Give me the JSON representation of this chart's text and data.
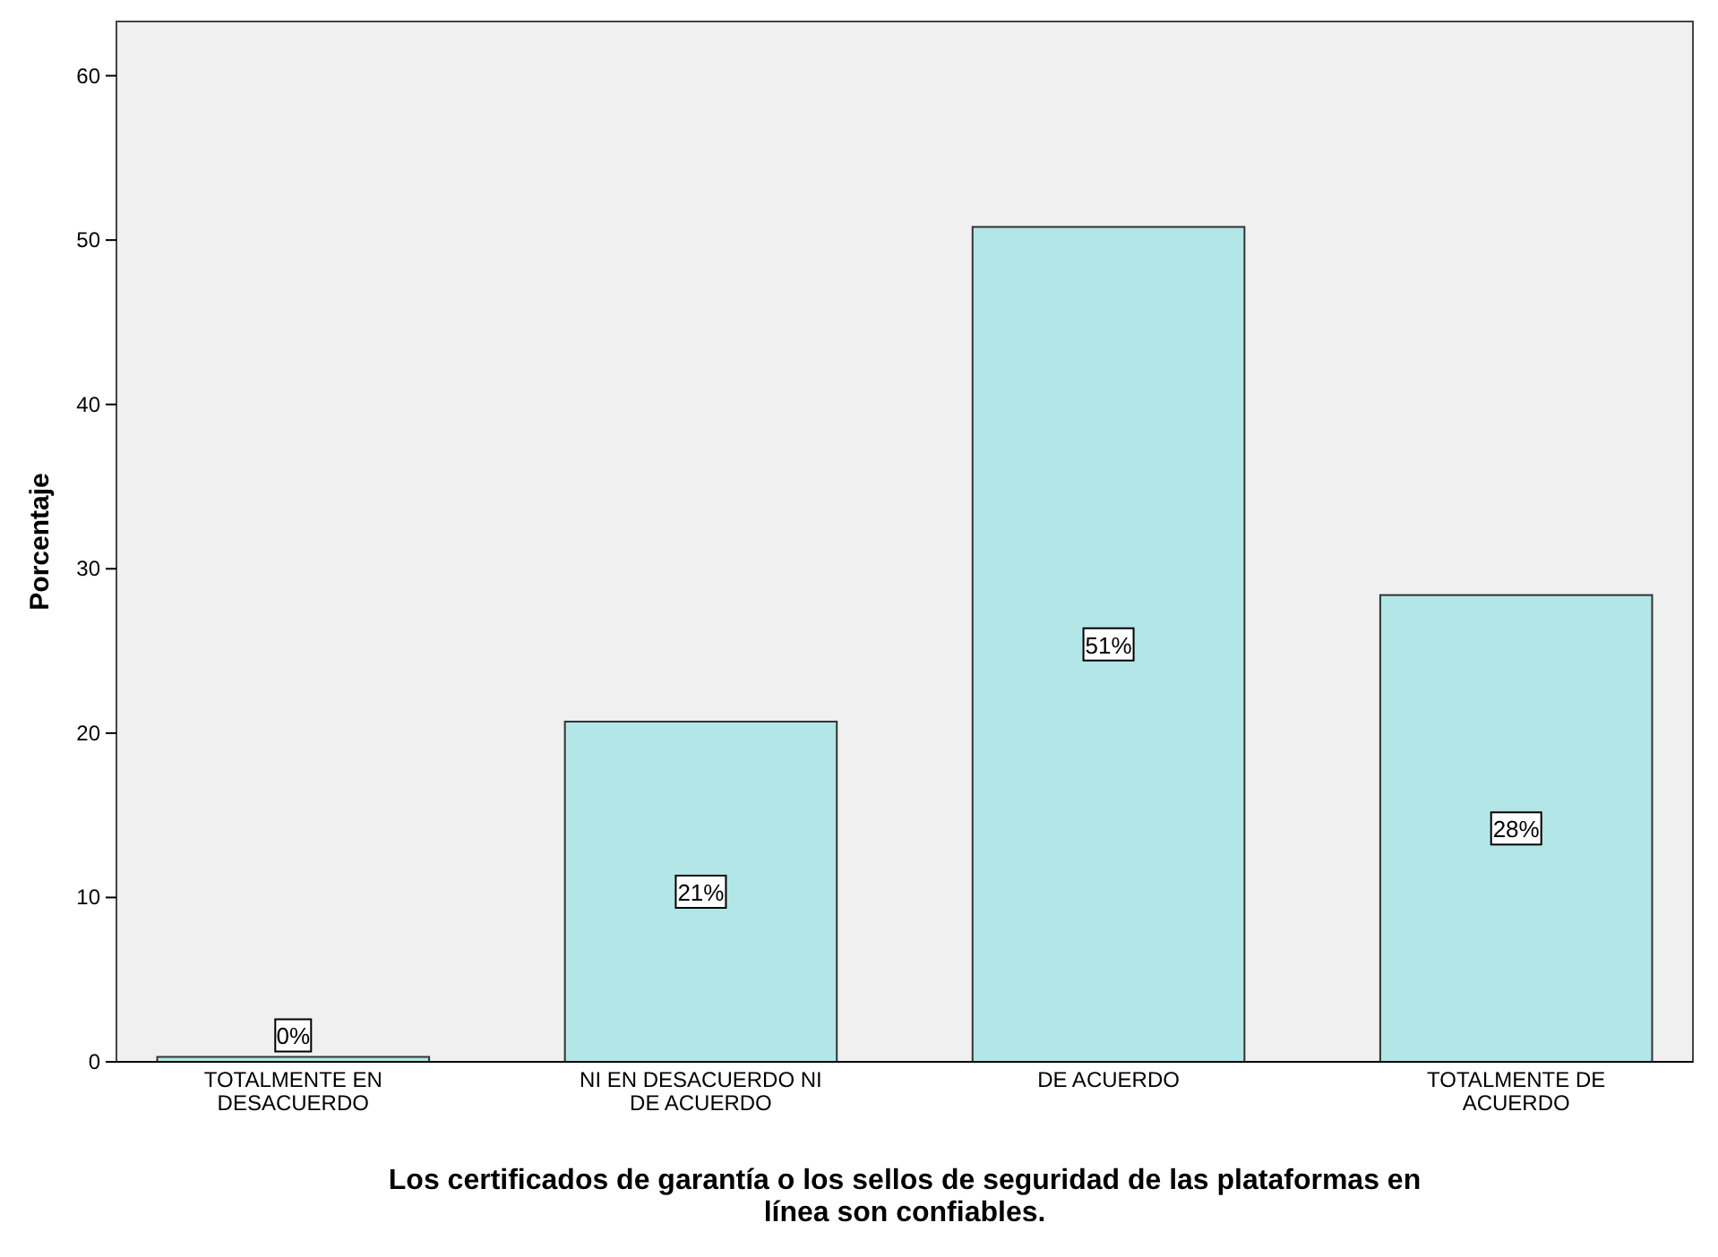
{
  "chart_data": {
    "type": "bar",
    "xlabel": "Los certificados de garantía o los sellos de seguridad de las plataformas en línea son confiables.",
    "ylabel": "Porcentaje",
    "categories": [
      "TOTALMENTE EN DESACUERDO",
      "NI EN DESACUERDO NI DE ACUERDO",
      "DE ACUERDO",
      "TOTALMENTE DE ACUERDO"
    ],
    "values": [
      0.3,
      20.7,
      50.8,
      28.4
    ],
    "value_labels": [
      "0%",
      "21%",
      "51%",
      "28%"
    ],
    "color": "#b3e6e7",
    "ylim": [
      0,
      63.3
    ],
    "yticks": [
      0,
      10,
      20,
      30,
      40,
      50,
      60
    ],
    "grid": false
  }
}
